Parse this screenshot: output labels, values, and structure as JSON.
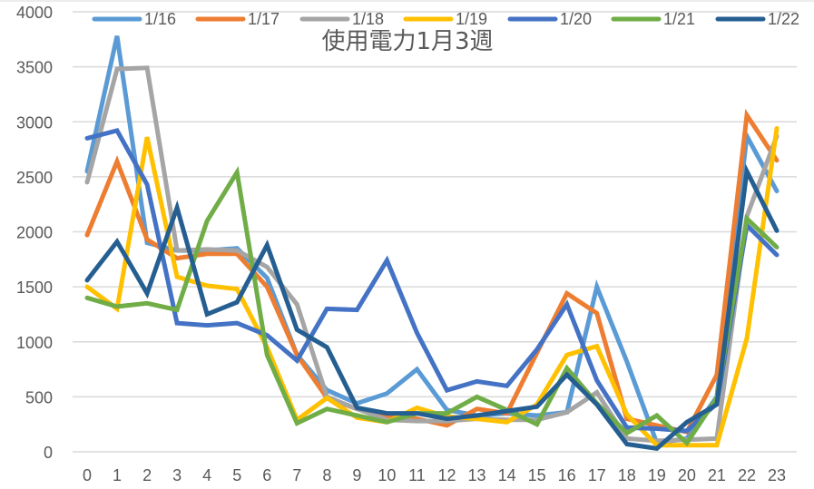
{
  "chart_data": {
    "type": "line",
    "title": "使用電力1月3週",
    "xlabel": "",
    "ylabel": "",
    "x": [
      0,
      1,
      2,
      3,
      4,
      5,
      6,
      7,
      8,
      9,
      10,
      11,
      12,
      13,
      14,
      15,
      16,
      17,
      18,
      19,
      20,
      21,
      22,
      23
    ],
    "categories": [
      "0",
      "1",
      "2",
      "3",
      "4",
      "5",
      "6",
      "7",
      "8",
      "9",
      "10",
      "11",
      "12",
      "13",
      "14",
      "15",
      "16",
      "17",
      "18",
      "19",
      "20",
      "21",
      "22",
      "23"
    ],
    "ylim": [
      0,
      4000
    ],
    "yticks": [
      0,
      500,
      1000,
      1500,
      2000,
      2500,
      3000,
      3500,
      4000
    ],
    "grid": true,
    "legend_position": "top",
    "series": [
      {
        "name": "1/16",
        "color": "#5B9BD5",
        "values": [
          2550,
          3780,
          1900,
          1830,
          1830,
          1850,
          1580,
          880,
          560,
          440,
          530,
          750,
          380,
          330,
          350,
          330,
          360,
          1500,
          820,
          80,
          120,
          500,
          2870,
          2370
        ]
      },
      {
        "name": "1/17",
        "color": "#ED7D31",
        "values": [
          1970,
          2640,
          1930,
          1760,
          1800,
          1800,
          1500,
          880,
          490,
          390,
          330,
          300,
          240,
          390,
          350,
          900,
          1440,
          1260,
          300,
          240,
          180,
          700,
          3060,
          2650
        ]
      },
      {
        "name": "1/18",
        "color": "#A5A5A5",
        "values": [
          2450,
          3480,
          3490,
          1830,
          1840,
          1830,
          1680,
          1340,
          500,
          390,
          290,
          280,
          280,
          300,
          290,
          290,
          360,
          540,
          120,
          100,
          110,
          120,
          2140,
          2870
        ]
      },
      {
        "name": "1/19",
        "color": "#FFC000",
        "values": [
          1500,
          1300,
          2860,
          1590,
          1510,
          1480,
          950,
          290,
          490,
          310,
          270,
          400,
          320,
          300,
          270,
          430,
          880,
          960,
          340,
          60,
          60,
          60,
          1030,
          2940
        ]
      },
      {
        "name": "1/20",
        "color": "#4472C4",
        "values": [
          2850,
          2920,
          2430,
          1170,
          1150,
          1170,
          1060,
          830,
          1300,
          1290,
          1740,
          1080,
          560,
          640,
          600,
          930,
          1340,
          650,
          220,
          210,
          190,
          440,
          2060,
          1790
        ]
      },
      {
        "name": "1/21",
        "color": "#70AD47",
        "values": [
          1400,
          1320,
          1350,
          1290,
          2100,
          2540,
          880,
          260,
          390,
          330,
          270,
          350,
          350,
          500,
          380,
          250,
          760,
          440,
          170,
          330,
          80,
          490,
          2120,
          1860
        ]
      },
      {
        "name": "1/22",
        "color": "#255E91",
        "values": [
          1560,
          1910,
          1440,
          2220,
          1250,
          1360,
          1880,
          1110,
          950,
          400,
          350,
          350,
          300,
          330,
          370,
          410,
          700,
          430,
          70,
          30,
          270,
          430,
          2550,
          2010
        ]
      }
    ]
  },
  "chart": {
    "title": "使用電力1月3週",
    "legend": [
      "1/16",
      "1/17",
      "1/18",
      "1/19",
      "1/20",
      "1/21",
      "1/22"
    ]
  }
}
